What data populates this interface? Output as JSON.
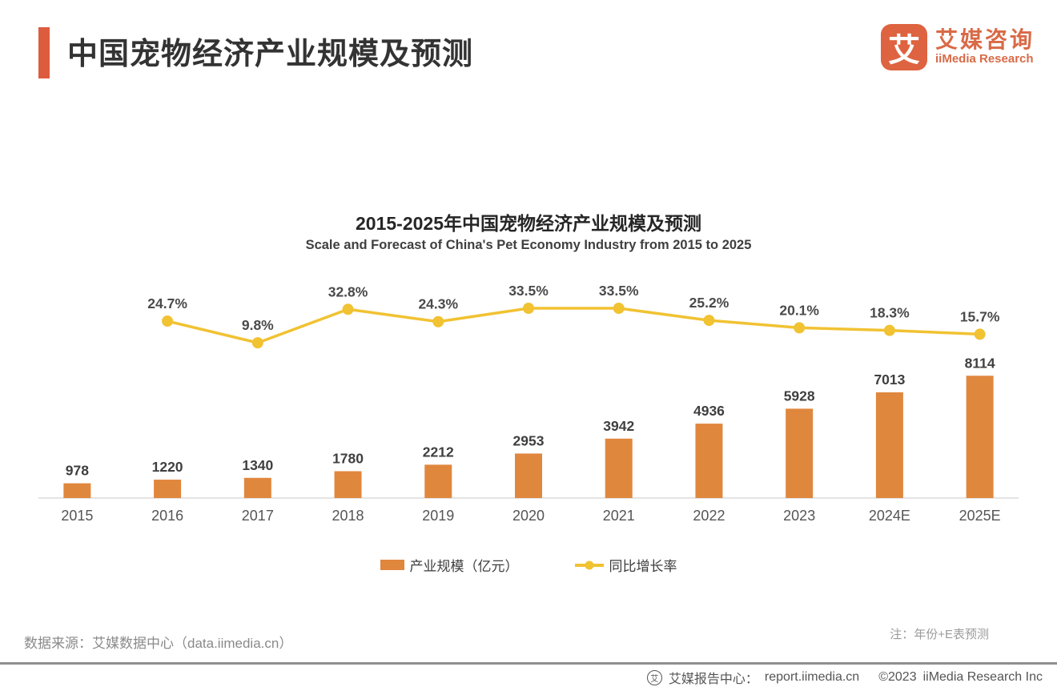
{
  "header": {
    "title": "中国宠物经济产业规模及预测",
    "logo": {
      "mark": "艾",
      "name_cn": "艾媒咨询",
      "name_en": "iiMedia Research",
      "brand_color": "#DE6340"
    }
  },
  "chart_data": {
    "type": "bar",
    "combo": "bar+line",
    "title": "2015-2025年中国宠物经济产业规模及预测",
    "subtitle": "Scale and Forecast of China's Pet Economy Industry from 2015 to 2025",
    "categories": [
      "2015",
      "2016",
      "2017",
      "2018",
      "2019",
      "2020",
      "2021",
      "2022",
      "2023",
      "2024E",
      "2025E"
    ],
    "series": [
      {
        "name": "产业规模（亿元）",
        "type": "bar",
        "color": "#E0873E",
        "values": [
          978,
          1220,
          1340,
          1780,
          2212,
          2953,
          3942,
          4936,
          5928,
          7013,
          8114
        ]
      },
      {
        "name": "同比增长率",
        "type": "line",
        "color": "#F1C232",
        "unit": "%",
        "values": [
          null,
          24.7,
          9.8,
          32.8,
          24.3,
          33.5,
          33.5,
          25.2,
          20.1,
          18.3,
          15.7
        ]
      }
    ],
    "ylim": [
      0,
      8500
    ],
    "grid": false,
    "axis_line_color": "#dcdcdc",
    "legend_position": "bottom"
  },
  "footnotes": {
    "source": "数据来源：艾媒数据中心（data.iimedia.cn）",
    "note": "注：年份+E表预测"
  },
  "footer": {
    "icon": "iimedia-report-icon",
    "icon_glyph": "艾",
    "label": "艾媒报告中心：",
    "url": "report.iimedia.cn",
    "copyright": "©2023",
    "company": "iiMedia Research  Inc"
  }
}
